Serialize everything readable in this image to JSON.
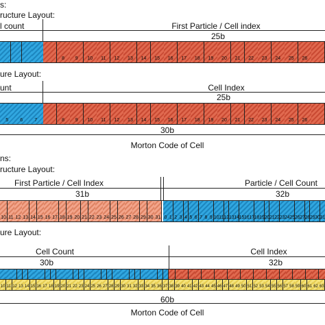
{
  "sections": [
    {
      "header": "s:",
      "layout_label": "ructure Layout:",
      "left_label": "l count",
      "right_label": "First Particle / Cell index",
      "right_bits": "25b",
      "left_cells": [
        "",
        "",
        "",
        ""
      ],
      "right_cells": [
        "",
        "8",
        "9",
        "10",
        "11",
        "12",
        "13",
        "14",
        "15",
        "16",
        "17",
        "18",
        "19",
        "20",
        "21",
        "22",
        "23",
        "24",
        "25",
        "26",
        ""
      ]
    },
    {
      "layout_label": "ure Layout:",
      "left_label": "unt",
      "right_label": "Cell Index",
      "right_bits": "25b",
      "left_cells": [
        "5",
        "6",
        "7"
      ],
      "right_cells": [
        "",
        "8",
        "9",
        "10",
        "11",
        "12",
        "13",
        "14",
        "15",
        "16",
        "17",
        "18",
        "19",
        "20",
        "21",
        "22",
        "23",
        "24",
        "25",
        "26",
        ""
      ],
      "total_bits": "30b",
      "footer": "Morton Code of Cell"
    },
    {
      "header": "ns:",
      "layout_label": "ructure Layout:",
      "left_label": "First Particle / Cell Index",
      "left_bits": "31b",
      "right_label": "Particle / Cell Count",
      "right_bits": "32b",
      "left_cells": [
        "10",
        "11",
        "12",
        "13",
        "14",
        "15",
        "16",
        "17",
        "18",
        "19",
        "20",
        "21",
        "22",
        "23",
        "24",
        "25",
        "26",
        "27",
        "28",
        "29",
        "30",
        "31"
      ],
      "right_cells": [
        "0",
        "1",
        "2",
        "3",
        "4",
        "5",
        "6",
        "7",
        "8",
        "9",
        "10",
        "11",
        "12",
        "13",
        "14",
        "15",
        "16",
        "17",
        "18",
        "19",
        "20",
        "21",
        "22",
        "23",
        "24",
        "25",
        "26",
        "27",
        "28",
        "29",
        "30",
        "31"
      ]
    },
    {
      "layout_label": "ure Layout:",
      "left_label": "Cell Count",
      "left_bits": "30b",
      "right_label": "Cell Index",
      "right_bits": "32b",
      "bottom_cells": [
        "10",
        "11",
        "12",
        "13",
        "14",
        "15",
        "16",
        "17",
        "18",
        "19",
        "20",
        "21",
        "22",
        "23",
        "24",
        "25",
        "26",
        "27",
        "28",
        "29",
        "30",
        "31",
        "32",
        "33",
        "34",
        "35",
        "36",
        "37",
        "38",
        "39",
        "40",
        "41",
        "42",
        "43",
        "44",
        "45",
        "46",
        "47",
        "48",
        "49",
        "50",
        "51",
        "52",
        "53",
        "54",
        "55",
        "56",
        "57",
        "58",
        "59",
        "60",
        "61",
        "62",
        "63"
      ],
      "total_bits": "60b",
      "footer": "Morton Code of Cell"
    }
  ],
  "colors": {
    "red": "#d85a40",
    "blue": "#2898d0",
    "salmon": "#eb9476",
    "yellow": "#eed866"
  }
}
